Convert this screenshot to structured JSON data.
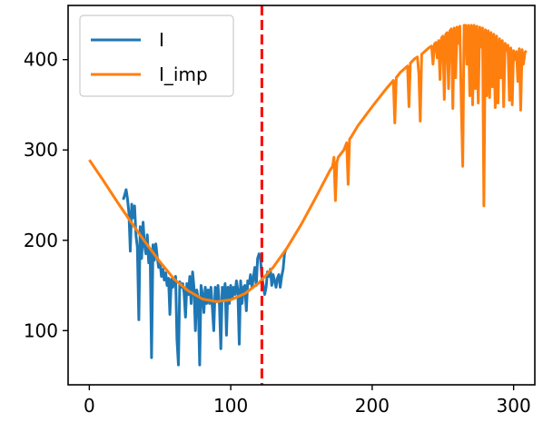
{
  "chart_data": {
    "type": "line",
    "title": "",
    "xlabel": "",
    "ylabel": "",
    "xlim": [
      -15,
      315
    ],
    "ylim": [
      40,
      460
    ],
    "xticks": [
      0,
      100,
      200,
      300
    ],
    "yticks": [
      100,
      200,
      300,
      400
    ],
    "grid": false,
    "legend_position": "top-left",
    "vline": {
      "x": 122,
      "color": "#ff0000",
      "style": "dashed"
    },
    "series": [
      {
        "name": "I",
        "color": "#1f77b4",
        "points": [
          [
            24,
            245
          ],
          [
            25,
            250
          ],
          [
            26,
            256
          ],
          [
            27,
            246
          ],
          [
            28,
            230
          ],
          [
            29,
            188
          ],
          [
            30,
            240
          ],
          [
            31,
            225
          ],
          [
            32,
            238
          ],
          [
            33,
            205
          ],
          [
            34,
            192
          ],
          [
            35,
            112
          ],
          [
            36,
            215
          ],
          [
            37,
            180
          ],
          [
            38,
            220
          ],
          [
            39,
            195
          ],
          [
            40,
            185
          ],
          [
            41,
            206
          ],
          [
            42,
            175
          ],
          [
            43,
            190
          ],
          [
            44,
            70
          ],
          [
            45,
            195
          ],
          [
            46,
            178
          ],
          [
            47,
            196
          ],
          [
            48,
            182
          ],
          [
            49,
            170
          ],
          [
            50,
            176
          ],
          [
            51,
            160
          ],
          [
            52,
            168
          ],
          [
            53,
            156
          ],
          [
            54,
            164
          ],
          [
            55,
            150
          ],
          [
            56,
            158
          ],
          [
            57,
            118
          ],
          [
            58,
            157
          ],
          [
            59,
            148
          ],
          [
            60,
            155
          ],
          [
            61,
            160
          ],
          [
            62,
            90
          ],
          [
            63,
            62
          ],
          [
            64,
            154
          ],
          [
            65,
            148
          ],
          [
            66,
            152
          ],
          [
            67,
            142
          ],
          [
            68,
            115
          ],
          [
            69,
            152
          ],
          [
            70,
            140
          ],
          [
            71,
            160
          ],
          [
            72,
            130
          ],
          [
            73,
            165
          ],
          [
            74,
            148
          ],
          [
            75,
            100
          ],
          [
            76,
            145
          ],
          [
            77,
            135
          ],
          [
            78,
            62
          ],
          [
            79,
            150
          ],
          [
            80,
            140
          ],
          [
            81,
            120
          ],
          [
            82,
            148
          ],
          [
            83,
            130
          ],
          [
            84,
            145
          ],
          [
            85,
            130
          ],
          [
            86,
            148
          ],
          [
            87,
            125
          ],
          [
            88,
            100
          ],
          [
            89,
            148
          ],
          [
            90,
            132
          ],
          [
            91,
            150
          ],
          [
            92,
            128
          ],
          [
            93,
            80
          ],
          [
            94,
            148
          ],
          [
            95,
            135
          ],
          [
            96,
            152
          ],
          [
            97,
            95
          ],
          [
            98,
            148
          ],
          [
            99,
            130
          ],
          [
            100,
            150
          ],
          [
            101,
            135
          ],
          [
            102,
            148
          ],
          [
            103,
            140
          ],
          [
            104,
            155
          ],
          [
            105,
            145
          ],
          [
            106,
            85
          ],
          [
            107,
            155
          ],
          [
            108,
            130
          ],
          [
            109,
            148
          ],
          [
            110,
            150
          ],
          [
            111,
            122
          ],
          [
            112,
            155
          ],
          [
            113,
            152
          ],
          [
            114,
            162
          ],
          [
            115,
            148
          ],
          [
            116,
            158
          ],
          [
            117,
            170
          ],
          [
            118,
            150
          ],
          [
            119,
            180
          ],
          [
            120,
            185
          ],
          [
            121,
            180
          ],
          [
            122,
            160
          ],
          [
            123,
            150
          ],
          [
            124,
            140
          ],
          [
            125,
            148
          ],
          [
            126,
            165
          ],
          [
            127,
            160
          ],
          [
            128,
            168
          ],
          [
            129,
            150
          ],
          [
            130,
            162
          ],
          [
            131,
            155
          ],
          [
            132,
            148
          ],
          [
            133,
            158
          ],
          [
            134,
            162
          ],
          [
            135,
            148
          ],
          [
            136,
            160
          ],
          [
            137,
            168
          ],
          [
            138,
            185
          ],
          [
            139,
            190
          ]
        ]
      },
      {
        "name": "I_imp",
        "color": "#ff7f0e",
        "points": [
          [
            0,
            289
          ],
          [
            10,
            266
          ],
          [
            20,
            242
          ],
          [
            30,
            219
          ],
          [
            40,
            197
          ],
          [
            50,
            176
          ],
          [
            60,
            157
          ],
          [
            70,
            144
          ],
          [
            80,
            135
          ],
          [
            90,
            132
          ],
          [
            100,
            134
          ],
          [
            110,
            141
          ],
          [
            120,
            153
          ],
          [
            130,
            170
          ],
          [
            140,
            192
          ],
          [
            150,
            218
          ],
          [
            160,
            247
          ],
          [
            170,
            277
          ],
          [
            172,
            282
          ],
          [
            173,
            292
          ],
          [
            174,
            244
          ],
          [
            175,
            286
          ],
          [
            176,
            292
          ],
          [
            178,
            296
          ],
          [
            180,
            300
          ],
          [
            182,
            308
          ],
          [
            183,
            262
          ],
          [
            184,
            312
          ],
          [
            185,
            314
          ],
          [
            190,
            327
          ],
          [
            200,
            348
          ],
          [
            210,
            368
          ],
          [
            215,
            377
          ],
          [
            216,
            330
          ],
          [
            217,
            380
          ],
          [
            220,
            386
          ],
          [
            225,
            393
          ],
          [
            226,
            348
          ],
          [
            227,
            396
          ],
          [
            230,
            401
          ],
          [
            232,
            403
          ],
          [
            233,
            384
          ],
          [
            234,
            332
          ],
          [
            235,
            406
          ],
          [
            240,
            413
          ],
          [
            242,
            415
          ],
          [
            243,
            395
          ],
          [
            244,
            417
          ],
          [
            245,
            419
          ],
          [
            246,
            402
          ],
          [
            247,
            421
          ],
          [
            248,
            378
          ],
          [
            249,
            424
          ],
          [
            250,
            426
          ],
          [
            251,
            356
          ],
          [
            252,
            428
          ],
          [
            253,
            430
          ],
          [
            254,
            368
          ],
          [
            255,
            432
          ],
          [
            256,
            434
          ],
          [
            257,
            346
          ],
          [
            258,
            435
          ],
          [
            259,
            380
          ],
          [
            260,
            436
          ],
          [
            261,
            418
          ],
          [
            262,
            437
          ],
          [
            263,
            352
          ],
          [
            264,
            282
          ],
          [
            265,
            438
          ],
          [
            266,
            438
          ],
          [
            267,
            395
          ],
          [
            268,
            438
          ],
          [
            269,
            360
          ],
          [
            270,
            438
          ],
          [
            271,
            350
          ],
          [
            272,
            438
          ],
          [
            273,
            368
          ],
          [
            274,
            437
          ],
          [
            275,
            352
          ],
          [
            276,
            436
          ],
          [
            277,
            414
          ],
          [
            278,
            435
          ],
          [
            279,
            238
          ],
          [
            280,
            433
          ],
          [
            281,
            360
          ],
          [
            282,
            432
          ],
          [
            283,
            358
          ],
          [
            284,
            430
          ],
          [
            285,
            370
          ],
          [
            286,
            428
          ],
          [
            287,
            347
          ],
          [
            288,
            426
          ],
          [
            289,
            352
          ],
          [
            290,
            423
          ],
          [
            291,
            380
          ],
          [
            292,
            421
          ],
          [
            293,
            348
          ],
          [
            294,
            418
          ],
          [
            295,
            410
          ],
          [
            296,
            416
          ],
          [
            297,
            355
          ],
          [
            298,
            413
          ],
          [
            299,
            350
          ],
          [
            300,
            410
          ],
          [
            301,
            400
          ],
          [
            302,
            409
          ],
          [
            303,
            376
          ],
          [
            304,
            412
          ],
          [
            305,
            344
          ],
          [
            306,
            411
          ],
          [
            307,
            395
          ],
          [
            308,
            408
          ],
          [
            309,
            410
          ]
        ]
      }
    ]
  }
}
